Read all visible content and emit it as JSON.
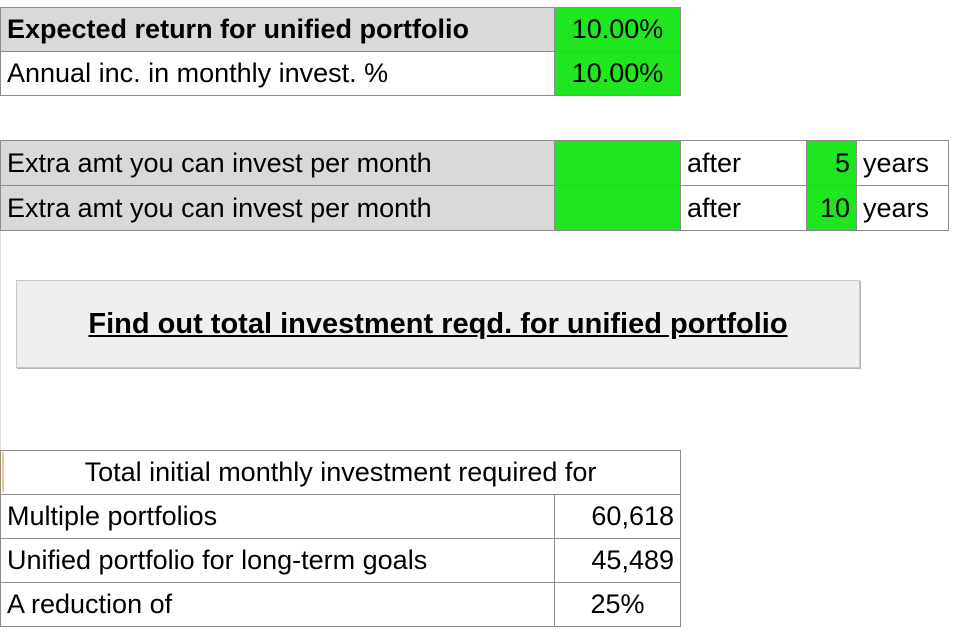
{
  "inputs": {
    "expected_return_label": "Expected return for unified portfolio",
    "expected_return_value": "10.00%",
    "annual_increase_label": "Annual inc. in monthly invest. %",
    "annual_increase_value": "10.00%"
  },
  "extra": {
    "rows": [
      {
        "label": "Extra amt you can invest per month",
        "amount": "",
        "after": "after",
        "years_value": "5",
        "years_unit": "years"
      },
      {
        "label": "Extra amt you can invest per month",
        "amount": "",
        "after": "after",
        "years_value": "10",
        "years_unit": "years"
      }
    ]
  },
  "button": {
    "label": "Find out total investment reqd. for unified portfolio"
  },
  "results": {
    "header": "Total initial monthly investment required for",
    "rows": [
      {
        "label": "Multiple portfolios",
        "value": "60,618"
      },
      {
        "label": "Unified portfolio for long-term goals",
        "value": "45,489"
      },
      {
        "label": "A reduction of",
        "value": "25%"
      }
    ]
  },
  "colors": {
    "input_green": "#1fe61f",
    "label_gray": "#d9d9d9"
  }
}
